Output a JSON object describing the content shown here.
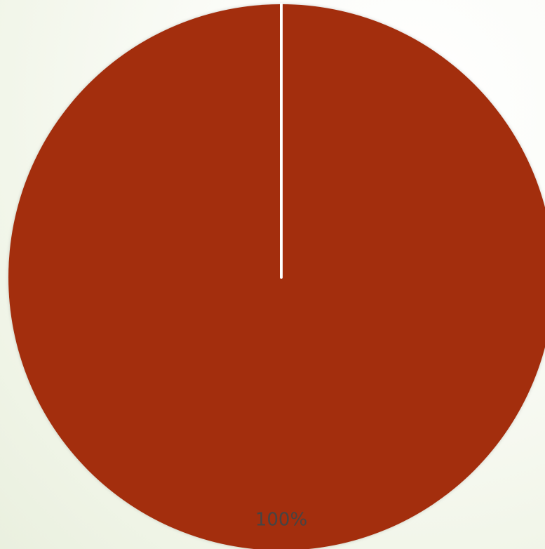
{
  "chart_data": {
    "type": "pie",
    "slices": [
      {
        "value": 100,
        "label": "100%",
        "color": "#a32e10"
      }
    ],
    "start_angle_deg": 0,
    "title": "",
    "legend": "none"
  },
  "style": {
    "slice_border_color": "#ffffff"
  }
}
